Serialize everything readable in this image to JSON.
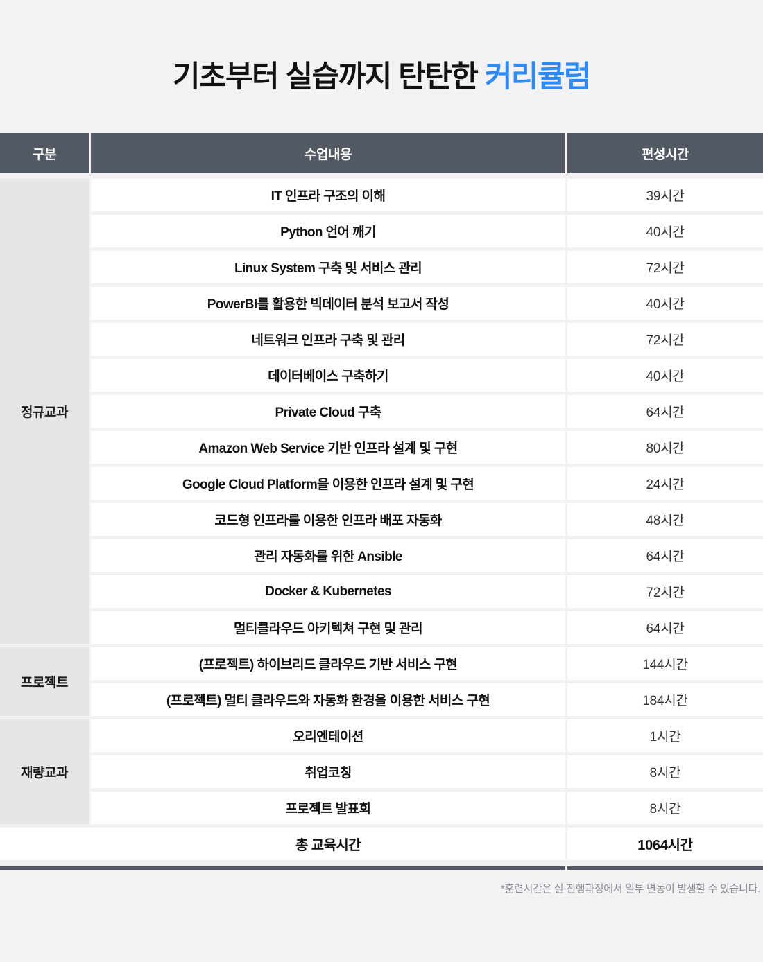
{
  "title": {
    "prefix": "기초부터 실습까지 탄탄한 ",
    "highlight": "커리큘럼"
  },
  "colors": {
    "page_bg": "#F2F2F4",
    "header_dark": "#525963",
    "group_gray": "#E6E6E6",
    "accent_blue": "#2E8AF5",
    "cell_white": "#FFFFFF",
    "footnote_gray": "#8D8D92"
  },
  "table": {
    "headers": [
      "구분",
      "수업내용",
      "편성시간"
    ],
    "groups": [
      {
        "label": "정규교과",
        "rows": [
          {
            "lesson": "IT 인프라 구조의 이해",
            "hours": "39시간"
          },
          {
            "lesson": "Python 언어 깨기",
            "hours": "40시간"
          },
          {
            "lesson": "Linux System 구축 및 서비스 관리",
            "hours": "72시간"
          },
          {
            "lesson": "PowerBI를 활용한 빅데이터 분석 보고서 작성",
            "hours": "40시간"
          },
          {
            "lesson": "네트워크 인프라 구축 및 관리",
            "hours": "72시간"
          },
          {
            "lesson": "데이터베이스 구축하기",
            "hours": "40시간"
          },
          {
            "lesson": "Private Cloud 구축",
            "hours": "64시간"
          },
          {
            "lesson": "Amazon Web Service 기반 인프라 설계 및 구현",
            "hours": "80시간"
          },
          {
            "lesson": "Google Cloud Platform을 이용한 인프라 설계 및 구현",
            "hours": "24시간"
          },
          {
            "lesson": "코드형 인프라를 이용한 인프라 배포 자동화",
            "hours": "48시간"
          },
          {
            "lesson": "관리 자동화를 위한 Ansible",
            "hours": "64시간"
          },
          {
            "lesson": "Docker & Kubernetes",
            "hours": "72시간"
          },
          {
            "lesson": "멀티클라우드 아키텍쳐 구현 및 관리",
            "hours": "64시간"
          }
        ]
      },
      {
        "label": "프로젝트",
        "rows": [
          {
            "lesson": "(프로젝트) 하이브리드 클라우드 기반 서비스 구현",
            "hours": "144시간"
          },
          {
            "lesson": "(프로젝트) 멀티 클라우드와 자동화 환경을 이용한 서비스 구현",
            "hours": "184시간"
          }
        ]
      },
      {
        "label": "재량교과",
        "rows": [
          {
            "lesson": "오리엔테이션",
            "hours": "1시간"
          },
          {
            "lesson": "취업코칭",
            "hours": "8시간"
          },
          {
            "lesson": "프로젝트 발표회",
            "hours": "8시간"
          }
        ]
      }
    ],
    "total": {
      "label": "총 교육시간",
      "hours": "1064시간"
    }
  },
  "footnote": "*훈련시간은 실 진행과정에서 일부 변동이 발생할 수 있습니다."
}
